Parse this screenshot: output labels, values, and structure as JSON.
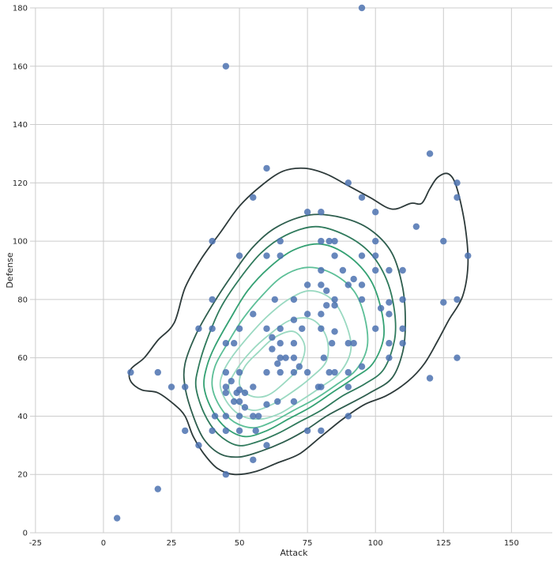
{
  "chart_data": {
    "type": "scatter",
    "title": "",
    "xlabel": "Attack",
    "ylabel": "Defense",
    "xlim": [
      -27,
      165
    ],
    "ylim": [
      0,
      180
    ],
    "xticks": [
      -25,
      0,
      25,
      50,
      75,
      100,
      125,
      150
    ],
    "yticks": [
      0,
      20,
      40,
      60,
      80,
      100,
      120,
      140,
      160,
      180
    ],
    "grid": true,
    "point_color": "#4c72b0",
    "kde_colors": [
      "#2d3a3a",
      "#2e5e4e",
      "#2f7a5c",
      "#34a173",
      "#5cbf97",
      "#9ad9c1"
    ],
    "points": [
      {
        "x": 5,
        "y": 5
      },
      {
        "x": 10,
        "y": 55
      },
      {
        "x": 20,
        "y": 55
      },
      {
        "x": 20,
        "y": 15
      },
      {
        "x": 25,
        "y": 50
      },
      {
        "x": 30,
        "y": 50
      },
      {
        "x": 30,
        "y": 35
      },
      {
        "x": 35,
        "y": 30
      },
      {
        "x": 35,
        "y": 70
      },
      {
        "x": 40,
        "y": 100
      },
      {
        "x": 40,
        "y": 80
      },
      {
        "x": 40,
        "y": 70
      },
      {
        "x": 40,
        "y": 35
      },
      {
        "x": 41,
        "y": 40
      },
      {
        "x": 45,
        "y": 160
      },
      {
        "x": 45,
        "y": 65
      },
      {
        "x": 45,
        "y": 55
      },
      {
        "x": 45,
        "y": 50
      },
      {
        "x": 45,
        "y": 48
      },
      {
        "x": 45,
        "y": 40
      },
      {
        "x": 45,
        "y": 35
      },
      {
        "x": 45,
        "y": 20
      },
      {
        "x": 47,
        "y": 52
      },
      {
        "x": 48,
        "y": 65
      },
      {
        "x": 48,
        "y": 45
      },
      {
        "x": 49,
        "y": 48
      },
      {
        "x": 50,
        "y": 95
      },
      {
        "x": 50,
        "y": 70
      },
      {
        "x": 50,
        "y": 55
      },
      {
        "x": 50,
        "y": 49
      },
      {
        "x": 50,
        "y": 45
      },
      {
        "x": 50,
        "y": 40
      },
      {
        "x": 50,
        "y": 35
      },
      {
        "x": 52,
        "y": 48
      },
      {
        "x": 52,
        "y": 43
      },
      {
        "x": 55,
        "y": 115
      },
      {
        "x": 55,
        "y": 75
      },
      {
        "x": 55,
        "y": 50
      },
      {
        "x": 55,
        "y": 40
      },
      {
        "x": 55,
        "y": 25
      },
      {
        "x": 56,
        "y": 35
      },
      {
        "x": 57,
        "y": 40
      },
      {
        "x": 60,
        "y": 125
      },
      {
        "x": 60,
        "y": 95
      },
      {
        "x": 60,
        "y": 70
      },
      {
        "x": 60,
        "y": 55
      },
      {
        "x": 60,
        "y": 44
      },
      {
        "x": 60,
        "y": 30
      },
      {
        "x": 62,
        "y": 67
      },
      {
        "x": 62,
        "y": 63
      },
      {
        "x": 63,
        "y": 80
      },
      {
        "x": 64,
        "y": 58
      },
      {
        "x": 64,
        "y": 45
      },
      {
        "x": 65,
        "y": 100
      },
      {
        "x": 65,
        "y": 95
      },
      {
        "x": 65,
        "y": 70
      },
      {
        "x": 65,
        "y": 65
      },
      {
        "x": 65,
        "y": 60
      },
      {
        "x": 65,
        "y": 55
      },
      {
        "x": 67,
        "y": 60
      },
      {
        "x": 70,
        "y": 80
      },
      {
        "x": 70,
        "y": 73
      },
      {
        "x": 70,
        "y": 65
      },
      {
        "x": 70,
        "y": 60
      },
      {
        "x": 70,
        "y": 55
      },
      {
        "x": 70,
        "y": 45
      },
      {
        "x": 72,
        "y": 57
      },
      {
        "x": 73,
        "y": 70
      },
      {
        "x": 75,
        "y": 110
      },
      {
        "x": 75,
        "y": 85
      },
      {
        "x": 75,
        "y": 75
      },
      {
        "x": 75,
        "y": 55
      },
      {
        "x": 75,
        "y": 35
      },
      {
        "x": 79,
        "y": 50
      },
      {
        "x": 80,
        "y": 110
      },
      {
        "x": 80,
        "y": 100
      },
      {
        "x": 80,
        "y": 90
      },
      {
        "x": 80,
        "y": 85
      },
      {
        "x": 80,
        "y": 75
      },
      {
        "x": 80,
        "y": 70
      },
      {
        "x": 80,
        "y": 50
      },
      {
        "x": 80,
        "y": 35
      },
      {
        "x": 81,
        "y": 60
      },
      {
        "x": 82,
        "y": 83
      },
      {
        "x": 82,
        "y": 78
      },
      {
        "x": 83,
        "y": 100
      },
      {
        "x": 83,
        "y": 55
      },
      {
        "x": 84,
        "y": 65
      },
      {
        "x": 85,
        "y": 100
      },
      {
        "x": 85,
        "y": 95
      },
      {
        "x": 85,
        "y": 80
      },
      {
        "x": 85,
        "y": 78
      },
      {
        "x": 85,
        "y": 69
      },
      {
        "x": 85,
        "y": 55
      },
      {
        "x": 88,
        "y": 90
      },
      {
        "x": 90,
        "y": 120
      },
      {
        "x": 90,
        "y": 85
      },
      {
        "x": 90,
        "y": 65
      },
      {
        "x": 90,
        "y": 55
      },
      {
        "x": 90,
        "y": 50
      },
      {
        "x": 90,
        "y": 40
      },
      {
        "x": 92,
        "y": 87
      },
      {
        "x": 92,
        "y": 65
      },
      {
        "x": 95,
        "y": 180
      },
      {
        "x": 95,
        "y": 115
      },
      {
        "x": 95,
        "y": 95
      },
      {
        "x": 95,
        "y": 85
      },
      {
        "x": 95,
        "y": 80
      },
      {
        "x": 95,
        "y": 57
      },
      {
        "x": 100,
        "y": 110
      },
      {
        "x": 100,
        "y": 100
      },
      {
        "x": 100,
        "y": 95
      },
      {
        "x": 100,
        "y": 90
      },
      {
        "x": 100,
        "y": 70
      },
      {
        "x": 102,
        "y": 77
      },
      {
        "x": 105,
        "y": 90
      },
      {
        "x": 105,
        "y": 79
      },
      {
        "x": 105,
        "y": 75
      },
      {
        "x": 105,
        "y": 65
      },
      {
        "x": 105,
        "y": 60
      },
      {
        "x": 110,
        "y": 90
      },
      {
        "x": 110,
        "y": 80
      },
      {
        "x": 110,
        "y": 70
      },
      {
        "x": 110,
        "y": 65
      },
      {
        "x": 115,
        "y": 105
      },
      {
        "x": 120,
        "y": 130
      },
      {
        "x": 120,
        "y": 53
      },
      {
        "x": 125,
        "y": 100
      },
      {
        "x": 125,
        "y": 79
      },
      {
        "x": 130,
        "y": 120
      },
      {
        "x": 130,
        "y": 115
      },
      {
        "x": 130,
        "y": 80
      },
      {
        "x": 130,
        "y": 60
      },
      {
        "x": 134,
        "y": 95
      }
    ],
    "kde_contours": [
      {
        "level": 1,
        "points": [
          [
            10,
            56
          ],
          [
            10,
            52
          ],
          [
            14,
            49
          ],
          [
            20,
            48
          ],
          [
            26,
            44
          ],
          [
            30,
            40
          ],
          [
            33,
            33
          ],
          [
            37,
            27
          ],
          [
            42,
            22
          ],
          [
            48,
            20
          ],
          [
            56,
            21
          ],
          [
            64,
            24
          ],
          [
            72,
            27
          ],
          [
            80,
            33
          ],
          [
            88,
            39
          ],
          [
            96,
            44
          ],
          [
            104,
            47
          ],
          [
            112,
            52
          ],
          [
            118,
            58
          ],
          [
            123,
            66
          ],
          [
            127,
            73
          ],
          [
            132,
            81
          ],
          [
            134,
            92
          ],
          [
            133,
            105
          ],
          [
            130,
            118
          ],
          [
            127,
            123
          ],
          [
            123,
            122
          ],
          [
            120,
            118
          ],
          [
            117,
            113
          ],
          [
            113,
            113
          ],
          [
            106,
            111
          ],
          [
            98,
            115
          ],
          [
            90,
            119
          ],
          [
            82,
            123
          ],
          [
            74,
            125
          ],
          [
            66,
            124
          ],
          [
            58,
            119
          ],
          [
            50,
            112
          ],
          [
            43,
            103
          ],
          [
            36,
            94
          ],
          [
            30,
            84
          ],
          [
            26,
            72
          ],
          [
            20,
            66
          ],
          [
            15,
            60
          ]
        ]
      },
      {
        "level": 2,
        "points": [
          [
            30,
            50
          ],
          [
            33,
            40
          ],
          [
            37,
            32
          ],
          [
            43,
            27
          ],
          [
            50,
            26
          ],
          [
            58,
            28
          ],
          [
            66,
            31
          ],
          [
            74,
            35
          ],
          [
            82,
            40
          ],
          [
            90,
            44
          ],
          [
            98,
            48
          ],
          [
            106,
            53
          ],
          [
            110,
            62
          ],
          [
            111,
            72
          ],
          [
            110,
            84
          ],
          [
            106,
            96
          ],
          [
            98,
            104
          ],
          [
            88,
            108
          ],
          [
            76,
            109
          ],
          [
            64,
            105
          ],
          [
            55,
            98
          ],
          [
            47,
            88
          ],
          [
            40,
            78
          ],
          [
            34,
            68
          ],
          [
            30,
            58
          ]
        ]
      },
      {
        "level": 3,
        "points": [
          [
            34,
            50
          ],
          [
            37,
            41
          ],
          [
            42,
            34
          ],
          [
            49,
            30
          ],
          [
            56,
            31
          ],
          [
            64,
            34
          ],
          [
            72,
            38
          ],
          [
            80,
            42
          ],
          [
            88,
            47
          ],
          [
            96,
            51
          ],
          [
            103,
            56
          ],
          [
            107,
            66
          ],
          [
            107,
            76
          ],
          [
            104,
            87
          ],
          [
            98,
            96
          ],
          [
            89,
            102
          ],
          [
            78,
            105
          ],
          [
            67,
            102
          ],
          [
            58,
            96
          ],
          [
            50,
            87
          ],
          [
            43,
            77
          ],
          [
            38,
            66
          ],
          [
            35,
            57
          ]
        ]
      },
      {
        "level": 4,
        "points": [
          [
            37,
            50
          ],
          [
            40,
            42
          ],
          [
            45,
            36
          ],
          [
            52,
            33
          ],
          [
            60,
            35
          ],
          [
            68,
            39
          ],
          [
            76,
            43
          ],
          [
            84,
            48
          ],
          [
            92,
            53
          ],
          [
            99,
            58
          ],
          [
            103,
            67
          ],
          [
            102,
            77
          ],
          [
            98,
            87
          ],
          [
            90,
            95
          ],
          [
            80,
            99
          ],
          [
            70,
            97
          ],
          [
            61,
            91
          ],
          [
            53,
            83
          ],
          [
            47,
            74
          ],
          [
            41,
            64
          ],
          [
            38,
            57
          ]
        ]
      },
      {
        "level": 5,
        "points": [
          [
            40,
            50
          ],
          [
            43,
            43
          ],
          [
            48,
            38
          ],
          [
            55,
            36
          ],
          [
            62,
            38
          ],
          [
            70,
            42
          ],
          [
            78,
            46
          ],
          [
            86,
            51
          ],
          [
            93,
            56
          ],
          [
            97,
            64
          ],
          [
            96,
            74
          ],
          [
            92,
            83
          ],
          [
            84,
            89
          ],
          [
            75,
            91
          ],
          [
            66,
            88
          ],
          [
            58,
            81
          ],
          [
            51,
            73
          ],
          [
            45,
            64
          ],
          [
            41,
            57
          ]
        ]
      },
      {
        "level": 6,
        "points": [
          [
            43,
            50
          ],
          [
            46,
            44
          ],
          [
            51,
            40
          ],
          [
            58,
            39
          ],
          [
            65,
            41
          ],
          [
            72,
            45
          ],
          [
            80,
            50
          ],
          [
            87,
            55
          ],
          [
            91,
            63
          ],
          [
            89,
            72
          ],
          [
            84,
            80
          ],
          [
            76,
            83
          ],
          [
            68,
            80
          ],
          [
            60,
            74
          ],
          [
            53,
            67
          ],
          [
            47,
            60
          ],
          [
            44,
            55
          ]
        ]
      },
      {
        "level": 7,
        "points": [
          [
            46,
            50
          ],
          [
            49,
            45
          ],
          [
            55,
            42
          ],
          [
            62,
            44
          ],
          [
            69,
            48
          ],
          [
            76,
            53
          ],
          [
            82,
            59
          ],
          [
            82,
            67
          ],
          [
            77,
            73
          ],
          [
            69,
            73
          ],
          [
            61,
            68
          ],
          [
            54,
            62
          ],
          [
            49,
            56
          ]
        ]
      },
      {
        "level": 8,
        "points": [
          [
            50,
            51
          ],
          [
            54,
            47
          ],
          [
            60,
            47
          ],
          [
            66,
            51
          ],
          [
            72,
            57
          ],
          [
            74,
            64
          ],
          [
            70,
            69
          ],
          [
            63,
            67
          ],
          [
            57,
            62
          ],
          [
            52,
            57
          ]
        ]
      }
    ]
  }
}
